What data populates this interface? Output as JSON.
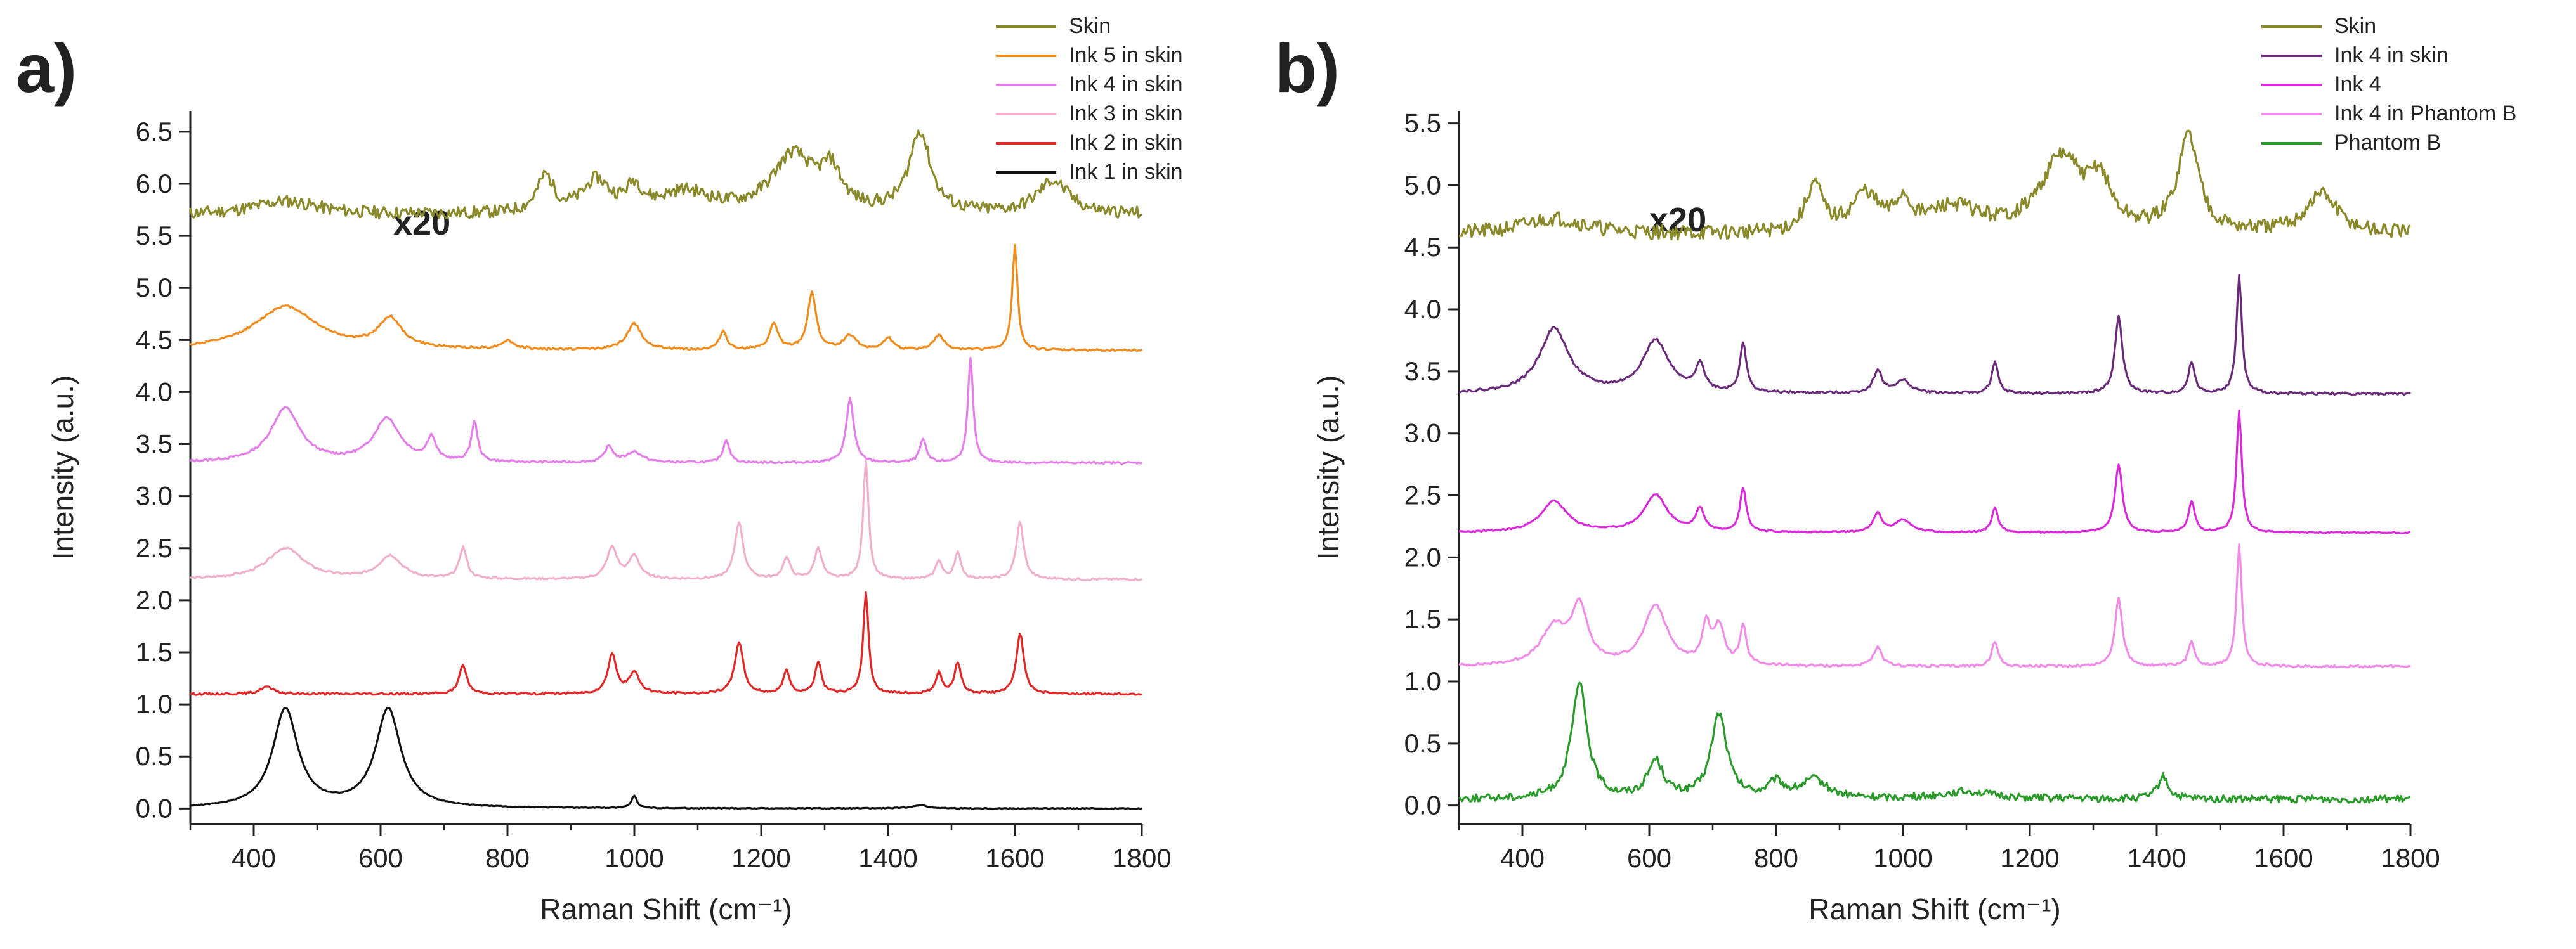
{
  "chart_data": [
    {
      "type": "line",
      "panel_label": "a)",
      "xlabel": "Raman Shift (cm⁻¹)",
      "ylabel": "Intensity (a.u.)",
      "xlim": [
        300,
        1800
      ],
      "ylim": [
        -0.15,
        6.7
      ],
      "xticks": [
        400,
        600,
        800,
        1000,
        1200,
        1400,
        1600,
        1800
      ],
      "yticks": [
        0.0,
        0.5,
        1.0,
        1.5,
        2.0,
        2.5,
        3.0,
        3.5,
        4.0,
        4.5,
        5.0,
        5.5,
        6.0,
        6.5
      ],
      "ytick_labels": [
        "0.0",
        "0.5",
        "1.0",
        "1.5",
        "2.0",
        "2.5",
        "3.0",
        "3.5",
        "4.0",
        "4.5",
        "5.0",
        "5.5",
        "6.0",
        "6.5"
      ],
      "annotation": "x20",
      "legend_position": "top-right",
      "grid": false,
      "series": [
        {
          "name": "Skin",
          "color": "#8a8a2a",
          "baseline": 5.7,
          "noise": 0.06,
          "seed": 11,
          "peaks": [
            [
              450,
              0.13,
              60
            ],
            [
              860,
              0.35,
              16
            ],
            [
              940,
              0.3,
              25
            ],
            [
              1000,
              0.22,
              15
            ],
            [
              1080,
              0.2,
              50
            ],
            [
              1250,
              0.55,
              40
            ],
            [
              1310,
              0.35,
              20
            ],
            [
              1450,
              0.78,
              20
            ],
            [
              1660,
              0.32,
              30
            ]
          ]
        },
        {
          "name": "Ink 5 in skin",
          "color": "#f08c1e",
          "baseline": 4.4,
          "noise": 0.01,
          "seed": 12,
          "peaks": [
            [
              450,
              0.42,
              60
            ],
            [
              615,
              0.28,
              22
            ],
            [
              800,
              0.08,
              12
            ],
            [
              1000,
              0.25,
              14
            ],
            [
              1140,
              0.18,
              7
            ],
            [
              1220,
              0.25,
              8
            ],
            [
              1280,
              0.55,
              8
            ],
            [
              1340,
              0.14,
              12
            ],
            [
              1400,
              0.12,
              8
            ],
            [
              1480,
              0.14,
              10
            ],
            [
              1600,
              1.0,
              5
            ]
          ]
        },
        {
          "name": "Ink 4 in skin",
          "color": "#e47ee8",
          "baseline": 3.32,
          "noise": 0.01,
          "seed": 13,
          "peaks": [
            [
              450,
              0.52,
              28
            ],
            [
              610,
              0.42,
              25
            ],
            [
              680,
              0.22,
              8
            ],
            [
              748,
              0.38,
              6
            ],
            [
              960,
              0.15,
              8
            ],
            [
              1000,
              0.1,
              15
            ],
            [
              1145,
              0.22,
              6
            ],
            [
              1340,
              0.62,
              7
            ],
            [
              1455,
              0.22,
              6
            ],
            [
              1530,
              1.0,
              5
            ]
          ]
        },
        {
          "name": "Ink 3 in skin",
          "color": "#f0b0cc",
          "baseline": 2.2,
          "noise": 0.01,
          "seed": 14,
          "peaks": [
            [
              450,
              0.3,
              35
            ],
            [
              615,
              0.22,
              22
            ],
            [
              730,
              0.3,
              7
            ],
            [
              965,
              0.3,
              10
            ],
            [
              1000,
              0.22,
              10
            ],
            [
              1165,
              0.55,
              8
            ],
            [
              1240,
              0.2,
              7
            ],
            [
              1290,
              0.3,
              7
            ],
            [
              1365,
              1.15,
              5
            ],
            [
              1480,
              0.18,
              6
            ],
            [
              1510,
              0.25,
              6
            ],
            [
              1608,
              0.55,
              7
            ]
          ]
        },
        {
          "name": "Ink 2 in skin",
          "color": "#e02828",
          "baseline": 1.1,
          "noise": 0.01,
          "seed": 15,
          "peaks": [
            [
              420,
              0.07,
              12
            ],
            [
              730,
              0.28,
              7
            ],
            [
              965,
              0.38,
              8
            ],
            [
              1000,
              0.2,
              10
            ],
            [
              1165,
              0.5,
              8
            ],
            [
              1240,
              0.22,
              6
            ],
            [
              1290,
              0.3,
              6
            ],
            [
              1365,
              0.98,
              5
            ],
            [
              1480,
              0.2,
              6
            ],
            [
              1510,
              0.3,
              6
            ],
            [
              1608,
              0.58,
              7
            ]
          ]
        },
        {
          "name": "Ink 1 in skin",
          "color": "#111111",
          "baseline": 0.0,
          "noise": 0.004,
          "seed": 16,
          "peaks": [
            [
              450,
              0.95,
              24
            ],
            [
              612,
              0.95,
              24
            ],
            [
              1000,
              0.12,
              5
            ],
            [
              1450,
              0.03,
              15
            ]
          ]
        }
      ]
    },
    {
      "type": "line",
      "panel_label": "b)",
      "xlabel": "Raman Shift (cm⁻¹)",
      "ylabel": "Intensity (a.u.)",
      "xlim": [
        300,
        1800
      ],
      "ylim": [
        -0.15,
        5.6
      ],
      "xticks": [
        400,
        600,
        800,
        1000,
        1200,
        1400,
        1600,
        1800
      ],
      "yticks": [
        0.0,
        0.5,
        1.0,
        1.5,
        2.0,
        2.5,
        3.0,
        3.5,
        4.0,
        4.5,
        5.0,
        5.5
      ],
      "ytick_labels": [
        "0.0",
        "0.5",
        "1.0",
        "1.5",
        "2.0",
        "2.5",
        "3.0",
        "3.5",
        "4.0",
        "4.5",
        "5.0",
        "5.5"
      ],
      "annotation": "x20",
      "legend_position": "top-right",
      "grid": false,
      "series": [
        {
          "name": "Skin",
          "color": "#8a8a2a",
          "baseline": 4.6,
          "noise": 0.06,
          "seed": 21,
          "peaks": [
            [
              450,
              0.13,
              60
            ],
            [
              860,
              0.38,
              16
            ],
            [
              940,
              0.3,
              25
            ],
            [
              1000,
              0.22,
              15
            ],
            [
              1080,
              0.2,
              50
            ],
            [
              1250,
              0.6,
              40
            ],
            [
              1310,
              0.35,
              20
            ],
            [
              1450,
              0.78,
              20
            ],
            [
              1660,
              0.32,
              30
            ]
          ]
        },
        {
          "name": "Ink 4 in skin",
          "color": "#6a2a7a",
          "baseline": 3.32,
          "noise": 0.01,
          "seed": 22,
          "peaks": [
            [
              450,
              0.52,
              28
            ],
            [
              610,
              0.42,
              25
            ],
            [
              680,
              0.22,
              8
            ],
            [
              748,
              0.4,
              6
            ],
            [
              960,
              0.18,
              8
            ],
            [
              1000,
              0.1,
              15
            ],
            [
              1145,
              0.25,
              6
            ],
            [
              1340,
              0.62,
              7
            ],
            [
              1455,
              0.25,
              6
            ],
            [
              1530,
              0.95,
              5
            ]
          ]
        },
        {
          "name": "Ink 4",
          "color": "#d92ad9",
          "baseline": 2.2,
          "noise": 0.006,
          "seed": 23,
          "peaks": [
            [
              450,
              0.25,
              25
            ],
            [
              610,
              0.3,
              22
            ],
            [
              680,
              0.18,
              8
            ],
            [
              748,
              0.35,
              6
            ],
            [
              960,
              0.15,
              8
            ],
            [
              1000,
              0.1,
              15
            ],
            [
              1145,
              0.2,
              6
            ],
            [
              1340,
              0.55,
              7
            ],
            [
              1455,
              0.25,
              6
            ],
            [
              1530,
              0.98,
              5
            ]
          ]
        },
        {
          "name": "Ink 4 in Phantom B",
          "color": "#f08ce8",
          "baseline": 1.12,
          "noise": 0.01,
          "seed": 24,
          "peaks": [
            [
              450,
              0.3,
              25
            ],
            [
              490,
              0.45,
              15
            ],
            [
              610,
              0.48,
              22
            ],
            [
              690,
              0.3,
              8
            ],
            [
              710,
              0.3,
              10
            ],
            [
              748,
              0.3,
              6
            ],
            [
              960,
              0.15,
              8
            ],
            [
              1145,
              0.2,
              6
            ],
            [
              1340,
              0.55,
              7
            ],
            [
              1455,
              0.2,
              6
            ],
            [
              1530,
              0.98,
              5
            ]
          ]
        },
        {
          "name": "Phantom B",
          "color": "#2a9a2a",
          "baseline": 0.05,
          "noise": 0.03,
          "seed": 25,
          "peaks": [
            [
              490,
              0.92,
              15
            ],
            [
              610,
              0.3,
              15
            ],
            [
              710,
              0.68,
              15
            ],
            [
              800,
              0.12,
              15
            ],
            [
              860,
              0.15,
              25
            ],
            [
              1100,
              0.06,
              50
            ],
            [
              1410,
              0.18,
              10
            ]
          ]
        }
      ]
    }
  ]
}
